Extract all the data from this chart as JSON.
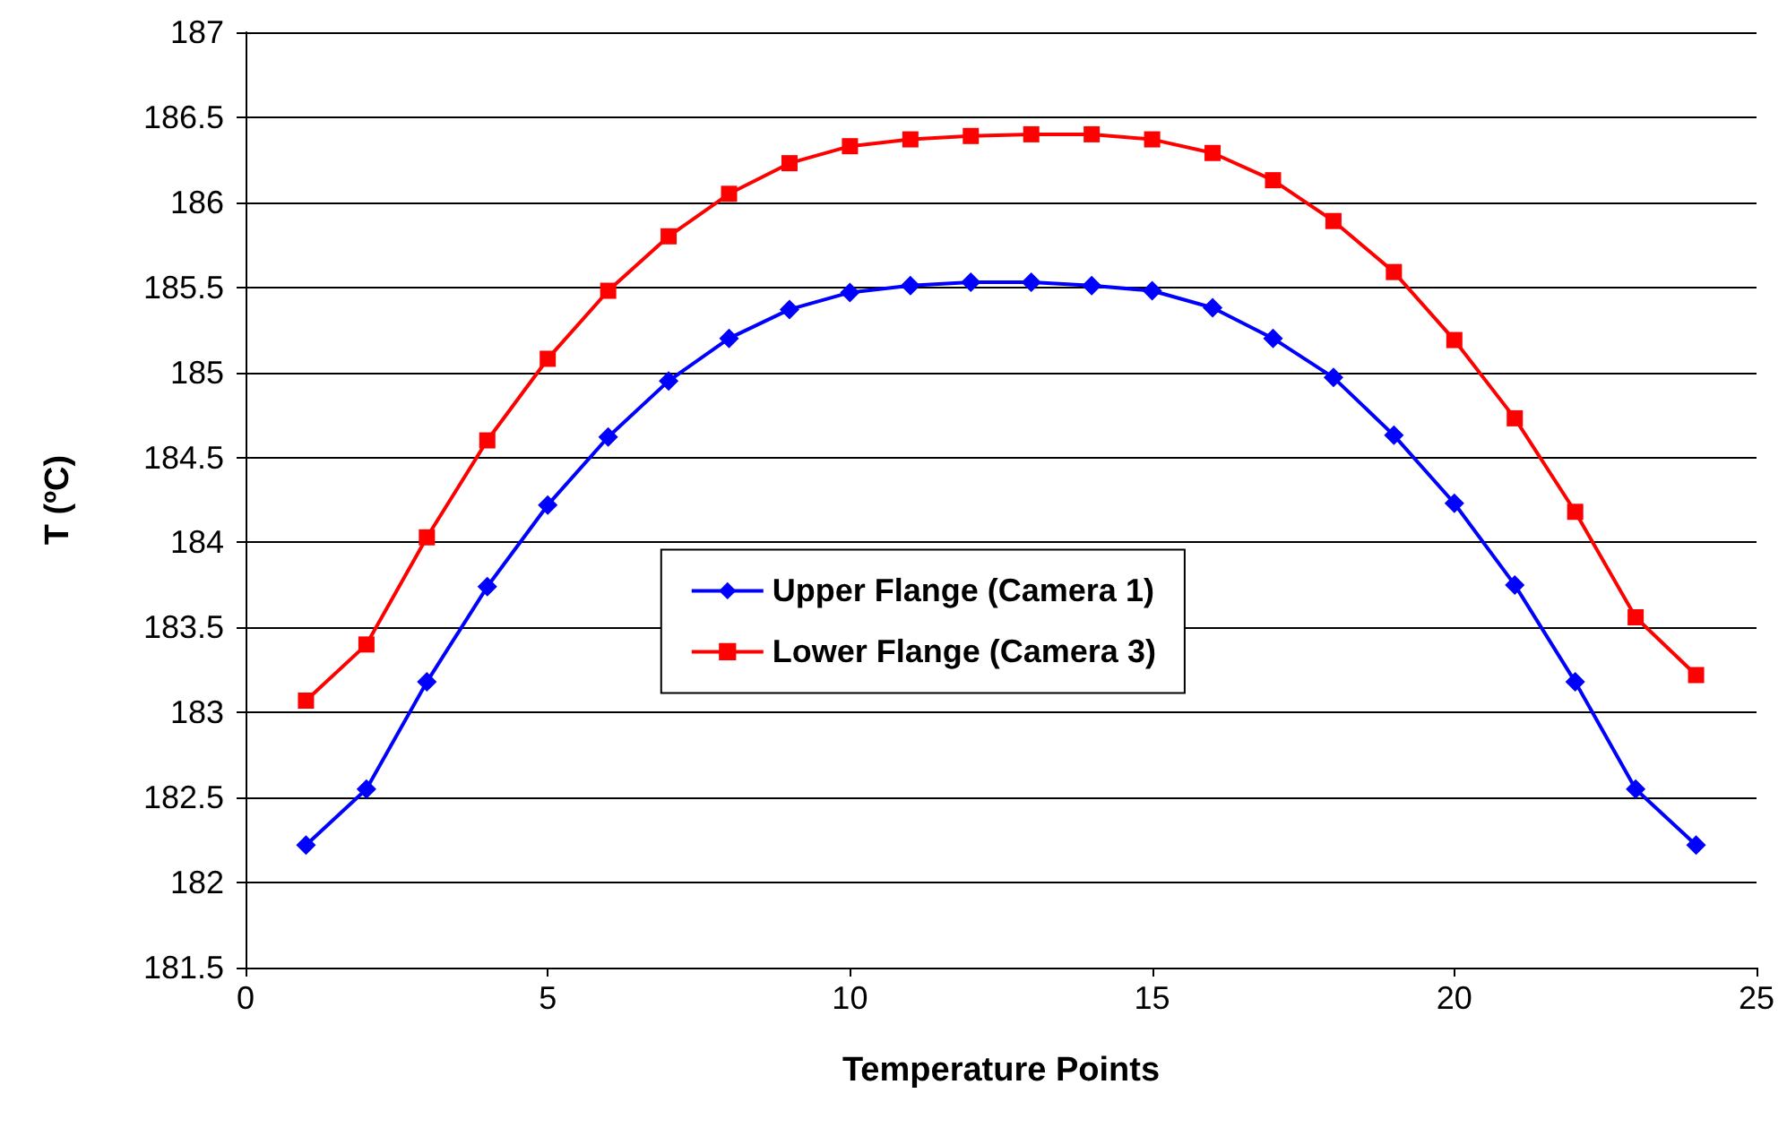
{
  "chart_data": {
    "type": "line",
    "xlabel": "Temperature Points",
    "ylabel": "T (ºC)",
    "x": [
      1,
      2,
      3,
      4,
      5,
      6,
      7,
      8,
      9,
      10,
      11,
      12,
      13,
      14,
      15,
      16,
      17,
      18,
      19,
      20,
      21,
      22,
      23,
      24
    ],
    "xlim": [
      0,
      25
    ],
    "xticks": [
      0,
      5,
      10,
      15,
      20,
      25
    ],
    "ylim": [
      181.5,
      187
    ],
    "yticks": [
      181.5,
      182,
      182.5,
      183,
      183.5,
      184,
      184.5,
      185,
      185.5,
      186,
      186.5,
      187
    ],
    "grid": "y",
    "legend": "center",
    "line_style": "solid",
    "series": [
      {
        "name": "Upper Flange (Camera 1)",
        "color": "#0000ff",
        "marker": "diamond",
        "values": [
          182.22,
          182.55,
          183.18,
          183.74,
          184.22,
          184.62,
          184.95,
          185.2,
          185.37,
          185.47,
          185.51,
          185.53,
          185.53,
          185.51,
          185.48,
          185.38,
          185.2,
          184.97,
          184.63,
          184.23,
          183.75,
          183.18,
          182.55,
          182.22
        ]
      },
      {
        "name": "Lower Flange (Camera 3)",
        "color": "#ff0000",
        "marker": "square",
        "values": [
          183.07,
          183.4,
          184.03,
          184.6,
          185.08,
          185.48,
          185.8,
          186.05,
          186.23,
          186.33,
          186.37,
          186.39,
          186.4,
          186.4,
          186.37,
          186.29,
          186.13,
          185.89,
          185.59,
          185.19,
          184.73,
          184.18,
          183.56,
          183.22
        ]
      }
    ]
  }
}
